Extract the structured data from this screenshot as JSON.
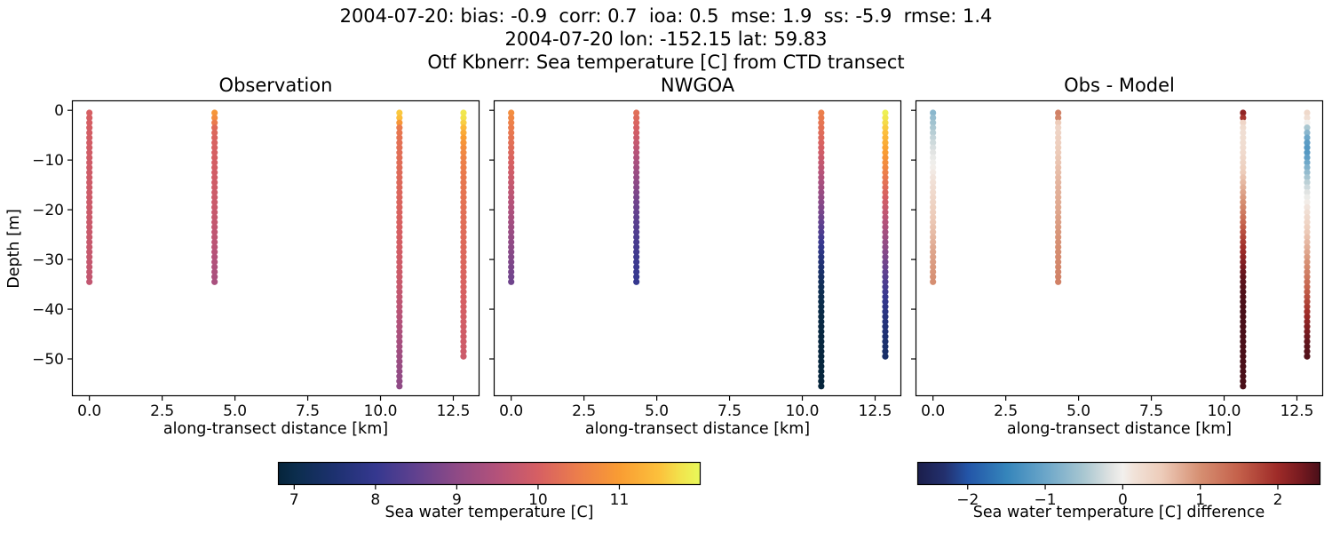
{
  "figure": {
    "suptitle_line1": "2004-07-20: bias: -0.9  corr: 0.7  ioa: 0.5  mse: 1.9  ss: -5.9  rmse: 1.4",
    "suptitle_line2": "2004-07-20 lon: -152.15 lat: 59.83",
    "suptitle_line3": "Otf Kbnerr: Sea temperature [C] from CTD transect"
  },
  "chart_data": {
    "type": "scatter",
    "description": "Three-panel CTD transect scatter: observed sea water temperature, NWGOA model temperature, and their difference, colored dots along depth profiles at four stations",
    "xlabel": "along-transect distance [km]",
    "ylabel": "Depth [m]",
    "xlim": [
      -0.6,
      13.4
    ],
    "ylim": [
      -57.5,
      2.0
    ],
    "xticks": {
      "values": [
        0,
        2.5,
        5,
        7.5,
        10,
        12.5
      ],
      "labels": [
        "0.0",
        "2.5",
        "5.0",
        "7.5",
        "10.0",
        "12.5"
      ]
    },
    "yticks": {
      "values": [
        0,
        -10,
        -20,
        -30,
        -40,
        -50
      ],
      "labels": [
        "0",
        "−10",
        "−20",
        "−30",
        "−40",
        "−50"
      ]
    },
    "station_x_km": [
      0.0,
      4.3,
      10.65,
      12.85
    ],
    "depth_top_m": -0.5,
    "depth_step_m": 1.0,
    "station_bottom_m": [
      -34.5,
      -34.5,
      -55.5,
      -49.5
    ],
    "panels": [
      {
        "title": "Observation",
        "field": "obs",
        "cmap": "thermal"
      },
      {
        "title": "NWGOA",
        "field": "model",
        "cmap": "thermal"
      },
      {
        "title": "Obs - Model",
        "field": "diff",
        "cmap": "balance"
      }
    ],
    "profiles_units": "value pairs are [depth_m, temperature_C]; dots are interpolated every 1 m",
    "profiles": {
      "obs": [
        [
          [
            -0.5,
            10.0
          ],
          [
            -10,
            9.9
          ],
          [
            -20,
            9.85
          ],
          [
            -30,
            9.75
          ],
          [
            -34.5,
            9.7
          ]
        ],
        [
          [
            -0.5,
            10.9
          ],
          [
            -1.5,
            10.75
          ],
          [
            -2.5,
            10.45
          ],
          [
            -3.5,
            10.2
          ],
          [
            -6,
            10.05
          ],
          [
            -12,
            9.95
          ],
          [
            -20,
            9.8
          ],
          [
            -27,
            9.6
          ],
          [
            -31,
            9.45
          ],
          [
            -34.5,
            9.35
          ]
        ],
        [
          [
            -0.5,
            11.55
          ],
          [
            -1.5,
            11.45
          ],
          [
            -2.5,
            10.9
          ],
          [
            -3.5,
            10.45
          ],
          [
            -6,
            10.3
          ],
          [
            -15,
            10.15
          ],
          [
            -25,
            10.0
          ],
          [
            -33,
            9.85
          ],
          [
            -40,
            9.6
          ],
          [
            -47,
            9.3
          ],
          [
            -52,
            9.1
          ],
          [
            -55.5,
            9.0
          ]
        ],
        [
          [
            -0.5,
            11.8
          ],
          [
            -1.5,
            11.75
          ],
          [
            -2.5,
            11.6
          ],
          [
            -3.5,
            11.4
          ],
          [
            -5,
            11.1
          ],
          [
            -7,
            10.8
          ],
          [
            -10,
            10.55
          ],
          [
            -14,
            10.4
          ],
          [
            -22,
            10.25
          ],
          [
            -32,
            10.1
          ],
          [
            -42,
            9.95
          ],
          [
            -49.5,
            9.85
          ]
        ]
      ],
      "model": [
        [
          [
            -0.5,
            10.75
          ],
          [
            -3,
            10.5
          ],
          [
            -6,
            10.3
          ],
          [
            -10,
            10.05
          ],
          [
            -14,
            9.8
          ],
          [
            -18,
            9.55
          ],
          [
            -22,
            9.3
          ],
          [
            -26,
            9.05
          ],
          [
            -30,
            8.85
          ],
          [
            -34.5,
            8.65
          ]
        ],
        [
          [
            -0.5,
            10.25
          ],
          [
            -3,
            10.05
          ],
          [
            -6,
            9.8
          ],
          [
            -9,
            9.5
          ],
          [
            -12,
            9.2
          ],
          [
            -15,
            8.95
          ],
          [
            -18,
            8.7
          ],
          [
            -22,
            8.45
          ],
          [
            -26,
            8.25
          ],
          [
            -30,
            8.1
          ],
          [
            -34.5,
            8.0
          ]
        ],
        [
          [
            -0.5,
            10.5
          ],
          [
            -4,
            10.25
          ],
          [
            -8,
            9.95
          ],
          [
            -12,
            9.6
          ],
          [
            -15,
            9.3
          ],
          [
            -18,
            9.0
          ],
          [
            -21,
            8.7
          ],
          [
            -24,
            8.35
          ],
          [
            -27,
            8.0
          ],
          [
            -30,
            7.65
          ],
          [
            -33,
            7.35
          ],
          [
            -36,
            7.1
          ],
          [
            -40,
            6.95
          ],
          [
            -45,
            6.87
          ],
          [
            -55.5,
            6.82
          ]
        ],
        [
          [
            -0.5,
            11.9
          ],
          [
            -3,
            11.65
          ],
          [
            -6,
            11.3
          ],
          [
            -9,
            10.95
          ],
          [
            -12,
            10.6
          ],
          [
            -15,
            10.25
          ],
          [
            -18,
            9.95
          ],
          [
            -21,
            9.65
          ],
          [
            -24,
            9.35
          ],
          [
            -27,
            9.05
          ],
          [
            -30,
            8.75
          ],
          [
            -33,
            8.45
          ],
          [
            -36,
            8.15
          ],
          [
            -39,
            7.9
          ],
          [
            -42,
            7.7
          ],
          [
            -45,
            7.55
          ],
          [
            -47,
            7.45
          ],
          [
            -49.5,
            7.4
          ]
        ]
      ],
      "diff": [
        [
          [
            -0.5,
            -0.75
          ],
          [
            -2,
            -0.6
          ],
          [
            -4,
            -0.45
          ],
          [
            -6,
            -0.3
          ],
          [
            -9,
            -0.1
          ],
          [
            -12,
            0.05
          ],
          [
            -16,
            0.25
          ],
          [
            -20,
            0.45
          ],
          [
            -24,
            0.6
          ],
          [
            -28,
            0.8
          ],
          [
            -31,
            0.9
          ],
          [
            -34.5,
            1.0
          ]
        ],
        [
          [
            -0.5,
            1.15
          ],
          [
            -1.5,
            1.1
          ],
          [
            -2.5,
            0.5
          ],
          [
            -3.5,
            0.35
          ],
          [
            -5,
            0.4
          ],
          [
            -10,
            0.55
          ],
          [
            -15,
            0.7
          ],
          [
            -20,
            0.8
          ],
          [
            -25,
            0.95
          ],
          [
            -30,
            1.05
          ],
          [
            -34.5,
            1.15
          ]
        ],
        [
          [
            -0.5,
            2.1
          ],
          [
            -1.5,
            1.9
          ],
          [
            -2.5,
            0.35
          ],
          [
            -4,
            0.2
          ],
          [
            -8,
            0.25
          ],
          [
            -12,
            0.45
          ],
          [
            -15,
            0.7
          ],
          [
            -18,
            0.95
          ],
          [
            -21,
            1.25
          ],
          [
            -24,
            1.6
          ],
          [
            -27,
            1.9
          ],
          [
            -30,
            2.15
          ],
          [
            -33,
            2.4
          ],
          [
            -36,
            2.5
          ],
          [
            -40,
            2.55
          ],
          [
            -55.5,
            2.55
          ]
        ],
        [
          [
            -0.5,
            0.3
          ],
          [
            -1.5,
            0.2
          ],
          [
            -2.5,
            0.0
          ],
          [
            -3.5,
            -0.5
          ],
          [
            -5,
            -0.9
          ],
          [
            -6.5,
            -1.15
          ],
          [
            -8,
            -1.25
          ],
          [
            -10,
            -1.05
          ],
          [
            -12,
            -0.75
          ],
          [
            -14,
            -0.45
          ],
          [
            -16,
            -0.2
          ],
          [
            -18,
            0.0
          ],
          [
            -21,
            0.25
          ],
          [
            -25,
            0.55
          ],
          [
            -29,
            0.85
          ],
          [
            -33,
            1.2
          ],
          [
            -37,
            1.6
          ],
          [
            -41,
            2.0
          ],
          [
            -44,
            2.25
          ],
          [
            -47,
            2.45
          ],
          [
            -49.5,
            2.5
          ]
        ]
      ]
    },
    "colormaps": {
      "thermal": {
        "vmin": 6.8,
        "vmax": 12.0,
        "stops": [
          [
            6.8,
            "#05243a"
          ],
          [
            7.0,
            "#0b2d4c"
          ],
          [
            7.5,
            "#1d3170"
          ],
          [
            8.0,
            "#35388f"
          ],
          [
            8.5,
            "#61418f"
          ],
          [
            9.0,
            "#8f4a86"
          ],
          [
            9.5,
            "#b4527a"
          ],
          [
            10.0,
            "#d65f63"
          ],
          [
            10.5,
            "#ec7e4b"
          ],
          [
            11.0,
            "#f99c33"
          ],
          [
            11.5,
            "#fcc13c"
          ],
          [
            11.75,
            "#f2e24c"
          ],
          [
            12.0,
            "#e9f95a"
          ]
        ]
      },
      "balance": {
        "vmin": -2.65,
        "vmax": 2.55,
        "stops": [
          [
            -2.65,
            "#1b1e4b"
          ],
          [
            -2.3,
            "#23306e"
          ],
          [
            -2.0,
            "#2355a8"
          ],
          [
            -1.5,
            "#3585bb"
          ],
          [
            -1.0,
            "#6ba6c9"
          ],
          [
            -0.5,
            "#a9c7d1"
          ],
          [
            -0.15,
            "#e0e3e2"
          ],
          [
            0.0,
            "#f2f0ed"
          ],
          [
            0.15,
            "#f1e2d8"
          ],
          [
            0.5,
            "#edccba"
          ],
          [
            1.0,
            "#d68f72"
          ],
          [
            1.5,
            "#c4604a"
          ],
          [
            2.0,
            "#9e2b28"
          ],
          [
            2.3,
            "#771a20"
          ],
          [
            2.55,
            "#4a0f19"
          ]
        ]
      }
    },
    "colorbars": [
      {
        "label": "Sea water temperature [C]",
        "cmap": "thermal",
        "tick_values": [
          7,
          8,
          9,
          10,
          11
        ],
        "tick_labels": [
          "7",
          "8",
          "9",
          "10",
          "11"
        ]
      },
      {
        "label": "Sea water temperature [C] difference",
        "cmap": "balance",
        "tick_values": [
          -2,
          -1,
          0,
          1,
          2
        ],
        "tick_labels": [
          "−2",
          "−1",
          "0",
          "1",
          "2"
        ]
      }
    ]
  }
}
